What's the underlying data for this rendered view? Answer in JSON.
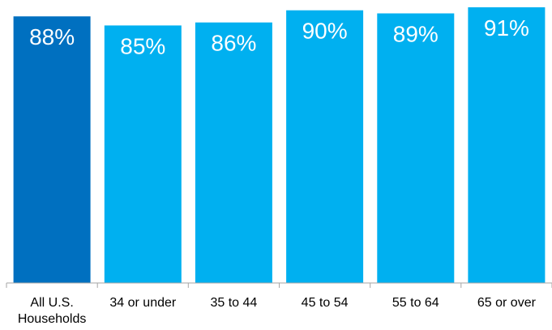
{
  "chart_data": {
    "type": "bar",
    "title": "",
    "xlabel": "",
    "ylabel": "",
    "ylim": [
      0,
      91
    ],
    "grid": false,
    "legend": "none",
    "categories": [
      [
        "All U.S.",
        "Households"
      ],
      [
        "34 or under"
      ],
      [
        "35 to 44"
      ],
      [
        "45 to 54"
      ],
      [
        "55 to 64"
      ],
      [
        "65 or over"
      ]
    ],
    "values": [
      88,
      85,
      86,
      90,
      89,
      91
    ],
    "data_labels": [
      "88%",
      "85%",
      "86%",
      "90%",
      "89%",
      "91%"
    ],
    "colors": {
      "highlight": "#0070C0",
      "bar": "#00B0F0",
      "label": "#ffffff",
      "axis": "#a6a6a6",
      "tick_text": "#000000"
    },
    "highlight_index": 0
  }
}
